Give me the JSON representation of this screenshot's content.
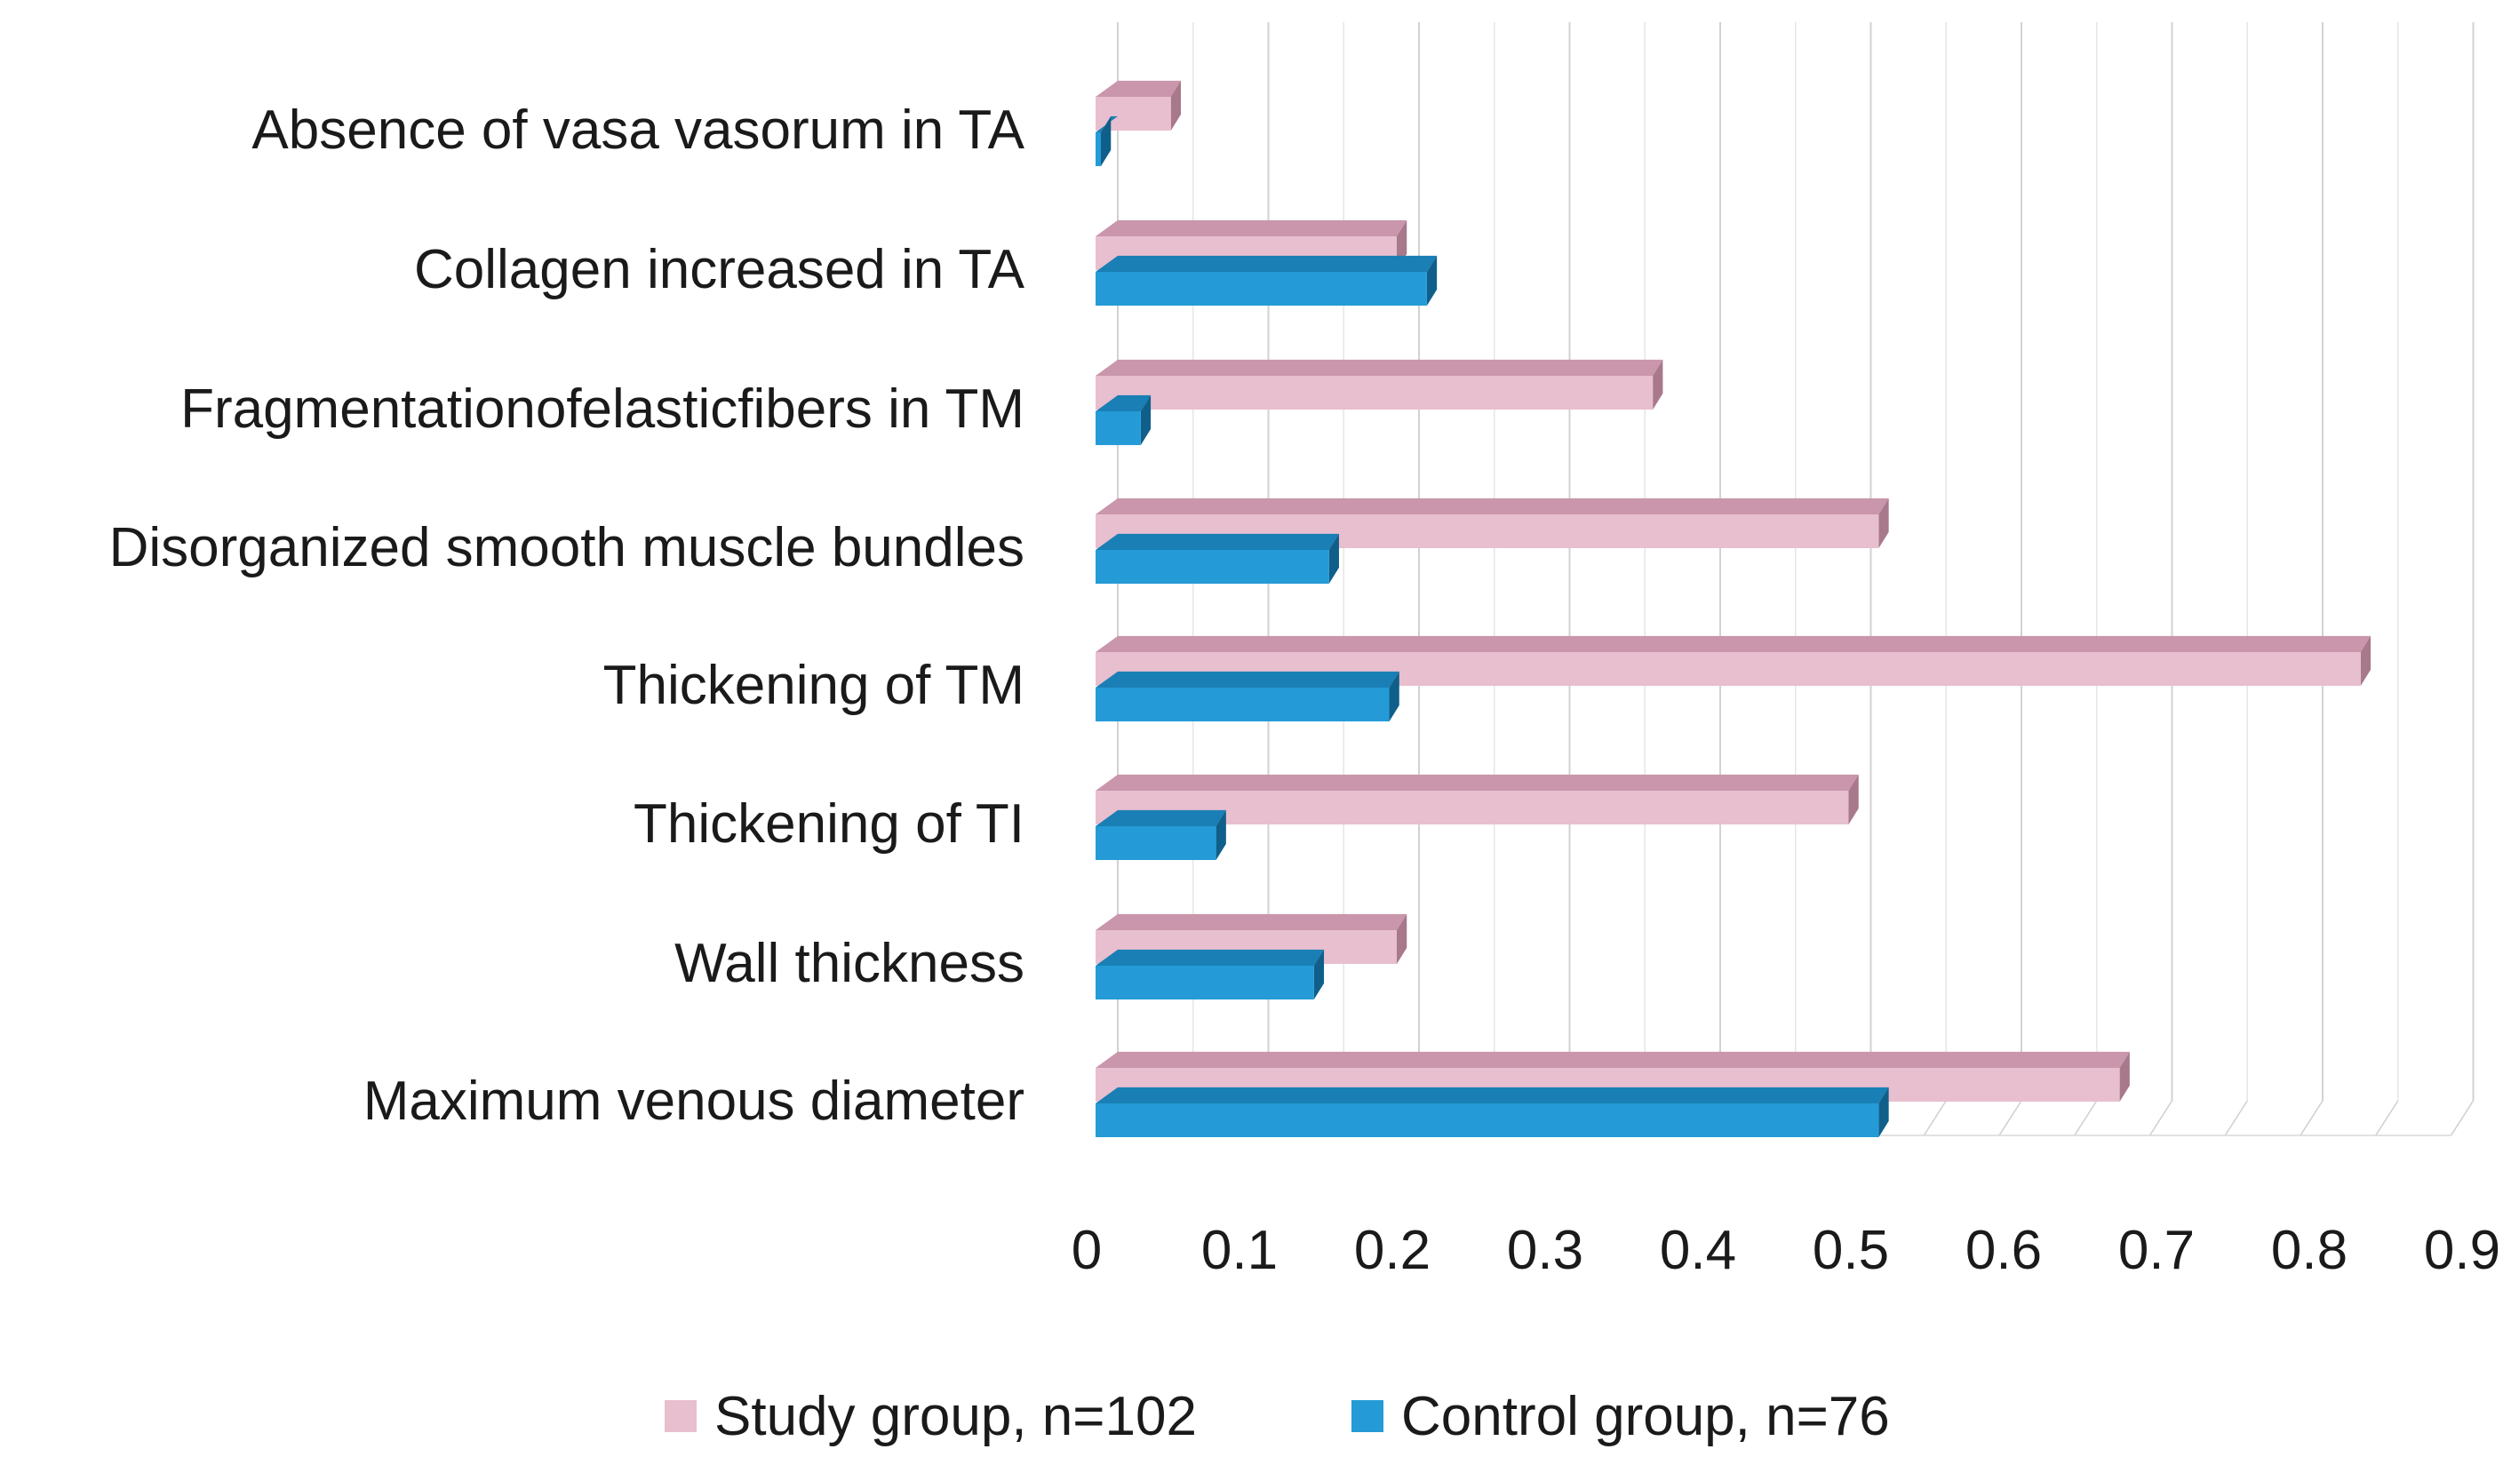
{
  "chart_data": {
    "type": "bar",
    "orientation": "horizontal",
    "title": "",
    "xlabel": "",
    "ylabel": "",
    "xlim": [
      0,
      0.9
    ],
    "x_ticks": [
      "0",
      "0.1",
      "0.2",
      "0.3",
      "0.4",
      "0.5",
      "0.6",
      "0.7",
      "0.8",
      "0.9"
    ],
    "x_tick_values": [
      0,
      0.1,
      0.2,
      0.3,
      0.4,
      0.5,
      0.6,
      0.7,
      0.8,
      0.9
    ],
    "grid": true,
    "legend_position": "bottom",
    "categories": [
      "Absence of vasa vasorum in TA",
      "Collagen increased in TA",
      "Fragmentationofelasticfibers in TM",
      "Disorganized smooth muscle bundles",
      "Thickening of TM",
      "Thickening of TI",
      "Wall thickness",
      "Maximum venous diameter"
    ],
    "series": [
      {
        "name": "Study group, n=102",
        "color": "#e8bfcf",
        "top_color": "#c996ab",
        "side_color": "#a8788b",
        "values": [
          0.05,
          0.2,
          0.37,
          0.52,
          0.84,
          0.5,
          0.2,
          0.68
        ]
      },
      {
        "name": "Control group, n=76",
        "color": "#249bd6",
        "top_color": "#1a7fb5",
        "side_color": "#0f5f8a",
        "values": [
          0.003,
          0.22,
          0.03,
          0.155,
          0.195,
          0.08,
          0.145,
          0.52
        ]
      }
    ]
  }
}
